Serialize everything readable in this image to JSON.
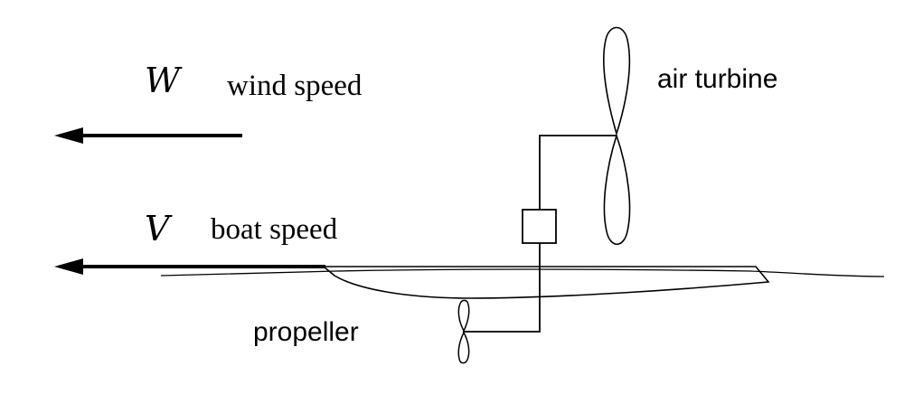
{
  "labels": {
    "wind_symbol": "W",
    "wind_text": "wind speed",
    "boat_symbol": "V",
    "boat_text": "boat speed",
    "air_turbine": "air turbine",
    "propeller": "propeller"
  },
  "colors": {
    "stroke": "#000000",
    "background": "#ffffff"
  }
}
